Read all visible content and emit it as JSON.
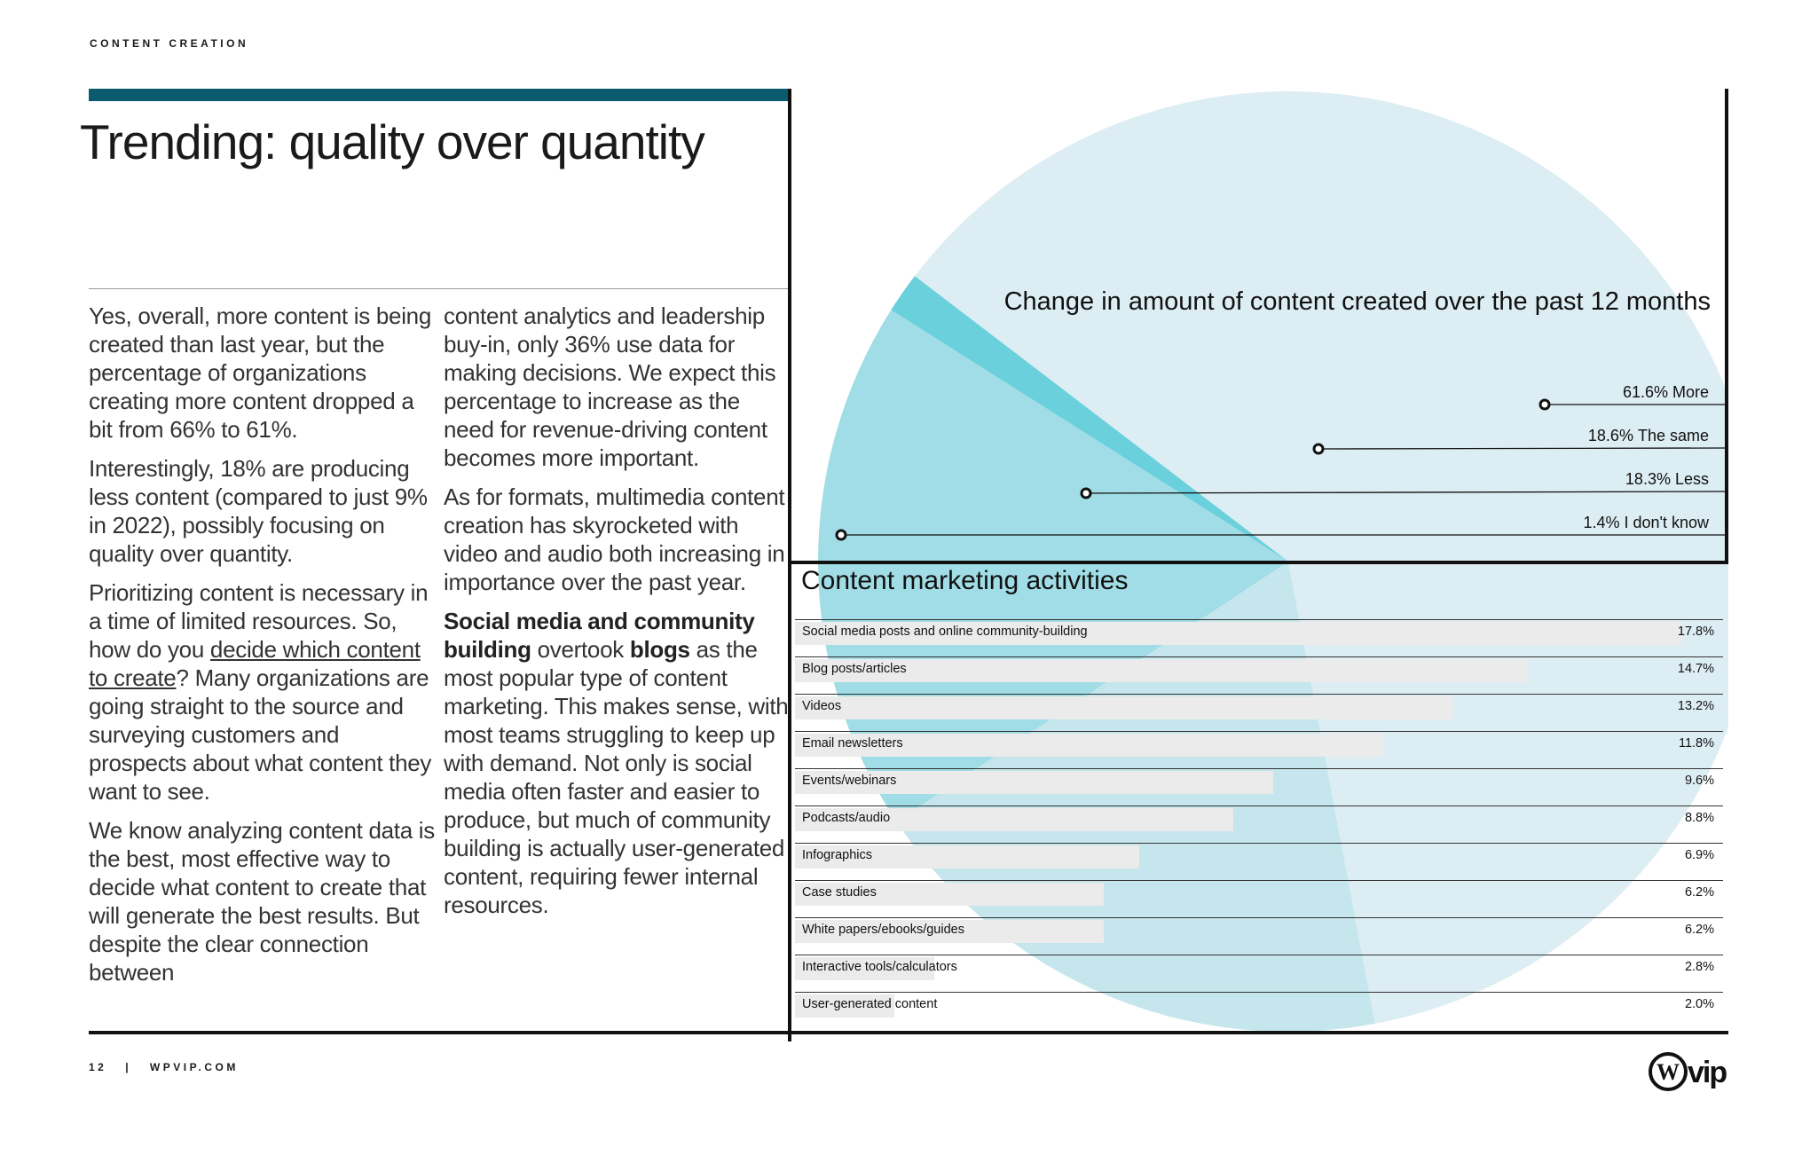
{
  "header": {
    "section_label": "CONTENT CREATION",
    "title": "Trending: quality over quantity"
  },
  "body_left": {
    "p1": "Yes, overall, more content is being created than last year, but the percentage of organizations creating more content dropped a bit from 66% to 61%.",
    "p2": "Interestingly, 18% are producing less content (compared to just 9% in 2022), possibly focusing on quality over quantity.",
    "p3_a": "Prioritizing content is necessary in a time of limited resources. So, how do you ",
    "p3_link": "decide which content to create",
    "p3_b": "? Many organizations are going straight to the source and surveying customers and prospects about what content they want to see.",
    "p4": "We know analyzing content data is the best, most effective way to decide what content to create that will generate the best results. But despite the clear connection between"
  },
  "body_right": {
    "p1": "content analytics and leadership buy-in, only 36% use data for making decisions. We expect this percentage to increase as the need for revenue-driving content becomes more important.",
    "p2": "As for formats, multimedia content creation has skyrocketed with video and audio both increasing in importance over the past year.",
    "p3_b1": "Social media and community building",
    "p3_t1": " overtook ",
    "p3_b2": "blogs",
    "p3_t2": " as the most popular type of content marketing. This makes sense, with most teams struggling to keep up with demand. Not only is social media often faster and easier to produce, but much of community building is actually user-generated content, requiring fewer internal resources."
  },
  "chart_data": [
    {
      "type": "pie",
      "title": "Change in amount of content created over the past 12 months",
      "labels": [
        "More",
        "The same",
        "Less",
        "I don't know"
      ],
      "values": [
        61.6,
        18.6,
        18.3,
        1.4
      ],
      "value_labels": [
        "61.6%",
        "18.6%",
        "18.3%",
        "1.4%"
      ],
      "colors": [
        "#dcedf3",
        "#c5e6ec",
        "#a0dde6",
        "#6ad0dc"
      ]
    },
    {
      "type": "bar",
      "orientation": "horizontal",
      "title": "Content marketing activities",
      "categories": [
        "Social media posts and online community-building",
        "Blog posts/articles",
        "Videos",
        "Email newsletters",
        "Events/webinars",
        "Podcasts/audio",
        "Infographics",
        "Case studies",
        "White papers/ebooks/guides",
        "Interactive tools/calculators",
        "User-generated content"
      ],
      "values": [
        17.8,
        14.7,
        13.2,
        11.8,
        9.6,
        8.8,
        6.9,
        6.2,
        6.2,
        2.8,
        2.0
      ],
      "value_labels": [
        "17.8%",
        "14.7%",
        "13.2%",
        "11.8%",
        "9.6%",
        "8.8%",
        "6.9%",
        "6.2%",
        "6.2%",
        "2.8%",
        "2.0%"
      ]
    }
  ],
  "footer": {
    "page": "12",
    "separator": "|",
    "site": "WPVIP.COM"
  },
  "logo": {
    "text": "vip",
    "icon": "wordpress-icon"
  }
}
